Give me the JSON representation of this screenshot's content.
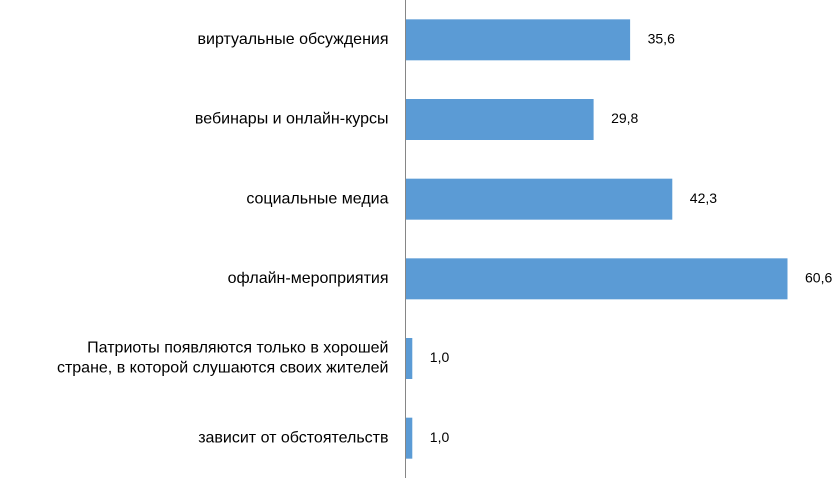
{
  "chart_data": {
    "type": "bar",
    "orientation": "horizontal",
    "categories": [
      [
        "виртуальные обсуждения"
      ],
      [
        "вебинары и онлайн-курсы"
      ],
      [
        "социальные медиа"
      ],
      [
        "офлайн-мероприятия"
      ],
      [
        "Патриоты появляются только в хорошей",
        "стране, в которой слушаются своих жителей"
      ],
      [
        "зависит  от обстоятельств"
      ]
    ],
    "values": [
      35.6,
      29.8,
      42.3,
      60.6,
      1.0,
      1.0
    ],
    "value_labels": [
      "35,6",
      "29,8",
      "42,3",
      "60,6",
      "1,0",
      "1,0"
    ],
    "xlim": [
      0,
      60.6
    ],
    "bar_color": "#5b9bd5",
    "axis_color": "#868686",
    "grid": false,
    "legend": "none"
  }
}
